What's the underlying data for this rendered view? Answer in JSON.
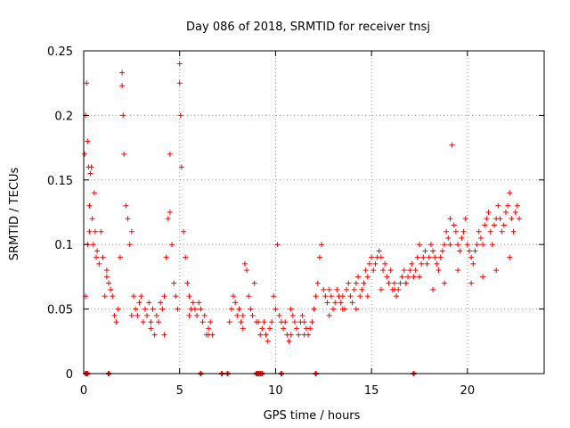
{
  "chart_data": {
    "type": "scatter",
    "title": "Day 086 of 2018, SRMTID for receiver tnsj",
    "xlabel": "GPS time / hours",
    "ylabel": "SRMTID / TECUs",
    "xlim": [
      0,
      24
    ],
    "ylim": [
      0,
      0.25
    ],
    "xticks": [
      0,
      5,
      10,
      15,
      20
    ],
    "yticks": [
      0,
      0.05,
      0.1,
      0.15,
      0.2,
      0.25
    ],
    "xtick_labels": [
      "0",
      "5",
      "10",
      "15",
      "20"
    ],
    "ytick_labels": [
      "0",
      "0.05",
      "0.1",
      "0.15",
      "0.2",
      "0.25"
    ],
    "grid": true,
    "marker": "+",
    "series": [
      {
        "name": "SRMTID",
        "color": "#ff0000",
        "x": [
          0.05,
          0.1,
          0.15,
          0.2,
          0.25,
          0.3,
          0.35,
          0.4,
          0.45,
          0.5,
          0.55,
          0.6,
          0.65,
          0.7,
          0.8,
          0.9,
          1.0,
          1.1,
          1.2,
          1.3,
          1.4,
          1.5,
          1.6,
          1.7,
          1.8,
          1.9,
          2.0,
          2.0,
          2.05,
          2.1,
          2.2,
          2.3,
          2.4,
          2.5,
          2.6,
          2.7,
          2.8,
          2.9,
          3.0,
          3.1,
          3.2,
          3.3,
          3.4,
          3.5,
          3.6,
          3.7,
          3.8,
          3.9,
          4.0,
          4.1,
          4.2,
          4.3,
          4.4,
          4.5,
          4.5,
          4.6,
          4.7,
          4.8,
          4.9,
          5.0,
          5.0,
          5.05,
          5.1,
          5.2,
          5.3,
          5.4,
          5.5,
          5.6,
          5.7,
          5.8,
          5.9,
          6.0,
          6.1,
          6.2,
          6.3,
          6.4,
          6.5,
          6.6,
          6.7,
          7.6,
          7.7,
          7.8,
          7.9,
          8.0,
          8.1,
          8.2,
          8.3,
          8.4,
          8.5,
          8.6,
          8.7,
          8.8,
          8.9,
          9.0,
          9.1,
          9.2,
          9.3,
          9.4,
          9.5,
          9.6,
          9.7,
          9.8,
          9.9,
          10.0,
          10.1,
          10.2,
          10.3,
          10.4,
          10.5,
          10.6,
          10.7,
          10.8,
          10.9,
          11.0,
          11.1,
          11.2,
          11.3,
          11.4,
          11.5,
          11.6,
          11.7,
          11.8,
          11.9,
          12.0,
          12.1,
          12.2,
          12.3,
          12.4,
          12.5,
          12.6,
          12.7,
          12.8,
          12.9,
          13.0,
          13.1,
          13.2,
          13.3,
          13.4,
          13.5,
          13.6,
          13.7,
          13.8,
          13.9,
          14.0,
          14.1,
          14.2,
          14.3,
          14.4,
          14.5,
          14.6,
          14.7,
          14.8,
          14.9,
          15.0,
          15.1,
          15.2,
          15.3,
          15.4,
          15.5,
          15.6,
          15.7,
          15.8,
          15.9,
          16.0,
          16.1,
          16.2,
          16.3,
          16.4,
          16.5,
          16.6,
          16.7,
          16.8,
          16.9,
          17.0,
          17.1,
          17.2,
          17.3,
          17.4,
          17.5,
          17.6,
          17.7,
          17.8,
          17.9,
          18.0,
          18.1,
          18.2,
          18.3,
          18.4,
          18.5,
          18.6,
          18.7,
          18.8,
          18.9,
          19.0,
          19.1,
          19.1,
          19.2,
          19.3,
          19.4,
          19.5,
          19.6,
          19.7,
          19.8,
          19.9,
          20.0,
          20.1,
          20.2,
          20.3,
          20.4,
          20.5,
          20.6,
          20.7,
          20.8,
          20.9,
          21.0,
          21.1,
          21.2,
          21.3,
          21.4,
          21.5,
          21.6,
          21.7,
          21.8,
          21.9,
          22.0,
          22.1,
          22.2,
          22.3,
          22.4,
          22.5,
          22.6,
          22.7,
          0.1,
          0.2,
          0.3,
          1.2,
          2.5,
          3.5,
          4.2,
          5.5,
          6.5,
          8.3,
          9.5,
          10.8,
          11.5,
          12.8,
          13.5,
          14.2,
          14.8,
          15.5,
          16.2,
          16.8,
          17.5,
          18.2,
          18.8,
          19.5,
          20.2,
          20.8,
          21.5,
          22.2
        ],
        "y": [
          0.17,
          0.2,
          0.225,
          0.18,
          0.16,
          0.13,
          0.155,
          0.16,
          0.12,
          0.1,
          0.14,
          0.11,
          0.09,
          0.095,
          0.085,
          0.11,
          0.09,
          0.06,
          0.075,
          0.07,
          0.065,
          0.06,
          0.045,
          0.04,
          0.05,
          0.09,
          0.233,
          0.223,
          0.2,
          0.17,
          0.13,
          0.12,
          0.1,
          0.11,
          0.06,
          0.05,
          0.045,
          0.055,
          0.06,
          0.04,
          0.05,
          0.045,
          0.055,
          0.04,
          0.05,
          0.03,
          0.045,
          0.04,
          0.055,
          0.05,
          0.06,
          0.09,
          0.12,
          0.17,
          0.125,
          0.1,
          0.07,
          0.06,
          0.05,
          0.24,
          0.225,
          0.2,
          0.16,
          0.11,
          0.09,
          0.07,
          0.06,
          0.05,
          0.055,
          0.05,
          0.045,
          0.055,
          0.05,
          0.04,
          0.045,
          0.03,
          0.035,
          0.04,
          0.03,
          0.04,
          0.05,
          0.06,
          0.055,
          0.045,
          0.05,
          0.04,
          0.045,
          0.085,
          0.08,
          0.06,
          0.05,
          0.045,
          0.07,
          0.04,
          0.04,
          0.03,
          0.035,
          0.04,
          0.03,
          0.025,
          0.035,
          0.04,
          0.06,
          0.05,
          0.1,
          0.045,
          0.04,
          0.035,
          0.04,
          0.03,
          0.025,
          0.05,
          0.045,
          0.04,
          0.035,
          0.03,
          0.04,
          0.045,
          0.04,
          0.035,
          0.03,
          0.035,
          0.04,
          0.05,
          0.06,
          0.07,
          0.09,
          0.1,
          0.065,
          0.06,
          0.055,
          0.065,
          0.06,
          0.05,
          0.055,
          0.065,
          0.06,
          0.055,
          0.06,
          0.05,
          0.065,
          0.07,
          0.06,
          0.055,
          0.065,
          0.07,
          0.075,
          0.06,
          0.065,
          0.07,
          0.08,
          0.075,
          0.085,
          0.09,
          0.08,
          0.085,
          0.09,
          0.095,
          0.09,
          0.08,
          0.085,
          0.075,
          0.07,
          0.08,
          0.065,
          0.07,
          0.06,
          0.065,
          0.07,
          0.075,
          0.08,
          0.07,
          0.075,
          0.08,
          0.085,
          0.075,
          0.08,
          0.09,
          0.1,
          0.085,
          0.09,
          0.095,
          0.085,
          0.09,
          0.1,
          0.095,
          0.09,
          0.085,
          0.08,
          0.09,
          0.095,
          0.1,
          0.11,
          0.105,
          0.1,
          0.12,
          0.177,
          0.115,
          0.11,
          0.1,
          0.095,
          0.105,
          0.11,
          0.12,
          0.1,
          0.095,
          0.09,
          0.085,
          0.095,
          0.1,
          0.11,
          0.105,
          0.1,
          0.115,
          0.12,
          0.125,
          0.11,
          0.1,
          0.115,
          0.12,
          0.13,
          0.12,
          0.11,
          0.115,
          0.125,
          0.13,
          0.14,
          0.12,
          0.11,
          0.125,
          0.13,
          0.12,
          0.06,
          0.1,
          0.11,
          0.08,
          0.045,
          0.035,
          0.03,
          0.045,
          0.03,
          0.035,
          0.03,
          0.03,
          0.03,
          0.045,
          0.05,
          0.05,
          0.06,
          0.065,
          0.065,
          0.07,
          0.075,
          0.065,
          0.07,
          0.08,
          0.07,
          0.075,
          0.08,
          0.09
        ],
        "ticks_on_zero_axis_x": [
          0.1,
          0.15,
          0.2,
          1.3,
          6.1,
          7.2,
          7.5,
          9.0,
          9.1,
          9.2,
          9.3,
          10.3,
          12.1,
          17.2
        ]
      }
    ]
  }
}
